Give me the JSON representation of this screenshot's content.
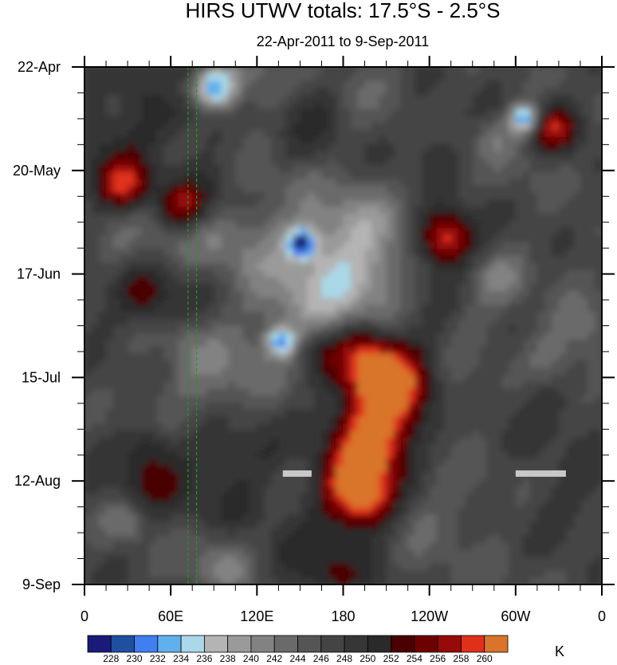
{
  "chart_data": {
    "type": "heatmap",
    "title": "HIRS UTWV totals: 17.5°S - 2.5°S",
    "subtitle": "22-Apr-2011 to 9-Sep-2011",
    "x_ticks": [
      "0",
      "60E",
      "120E",
      "180",
      "120W",
      "60W",
      "0"
    ],
    "x_tick_values": [
      0,
      60,
      120,
      180,
      240,
      300,
      360
    ],
    "xlim": [
      0,
      360
    ],
    "y_ticks": [
      "22-Apr",
      "20-May",
      "17-Jun",
      "15-Jul",
      "12-Aug",
      "9-Sep"
    ],
    "y_tick_values": [
      "2011-04-22",
      "2011-05-20",
      "2011-06-17",
      "2011-07-15",
      "2011-08-12",
      "2011-09-09"
    ],
    "ylim": [
      "2011-04-22",
      "2011-09-09"
    ],
    "colorbar": {
      "unit": "K",
      "levels": [
        "228",
        "230",
        "232",
        "234",
        "236",
        "238",
        "240",
        "242",
        "244",
        "246",
        "248",
        "250",
        "252",
        "254",
        "256",
        "258",
        "260"
      ],
      "colors": [
        "#1a1a7a",
        "#1f4fa0",
        "#3f7fef",
        "#5fb0ec",
        "#aad8e8",
        "#b4b4b4",
        "#9a9a9a",
        "#828282",
        "#6a6a6a",
        "#555555",
        "#444444",
        "#363636",
        "#2a2a2a",
        "#4a0000",
        "#6e0000",
        "#960a0a",
        "#e0301a",
        "#d9742a"
      ]
    },
    "features": {
      "reference_lines_lon": [
        72,
        78
      ],
      "missing_data_bars": [
        {
          "lon": [
            138,
            158
          ],
          "date": "2011-08-10"
        },
        {
          "lon": [
            300,
            335
          ],
          "date": "2011-08-10"
        }
      ]
    }
  }
}
